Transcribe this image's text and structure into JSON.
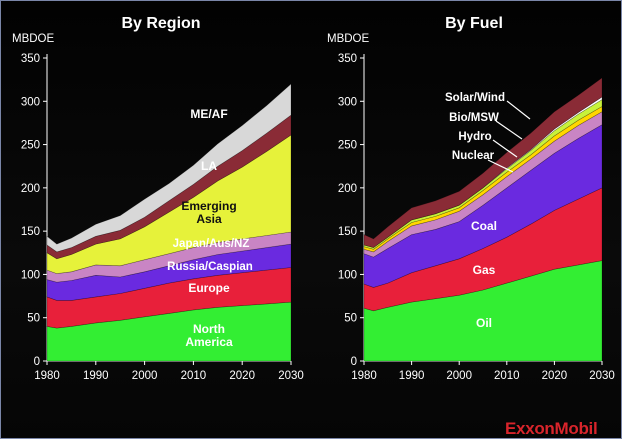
{
  "logo": "ExxonMobil",
  "chart_data": [
    {
      "type": "area",
      "stacked": true,
      "title": "By Region",
      "ylabel": "MBDOE",
      "xlabel": "",
      "ylim": [
        0,
        350
      ],
      "yticks": [
        0,
        50,
        100,
        150,
        200,
        250,
        300,
        350
      ],
      "xticks": [
        1980,
        1990,
        2000,
        2010,
        2020,
        2030
      ],
      "x": [
        1980,
        1982,
        1985,
        1990,
        1995,
        2000,
        2005,
        2010,
        2015,
        2020,
        2025,
        2030
      ],
      "series": [
        {
          "name": "North America",
          "color": "#33ee33",
          "values": [
            40,
            38,
            40,
            44,
            47,
            51,
            55,
            59,
            62,
            64,
            66,
            68
          ]
        },
        {
          "name": "Europe",
          "color": "#e8203a",
          "values": [
            34,
            32,
            30,
            30,
            31,
            33,
            35,
            36,
            37,
            38,
            39,
            40
          ]
        },
        {
          "name": "Russia/Caspian",
          "color": "#6a2ae0",
          "values": [
            20,
            21,
            23,
            25,
            19,
            19,
            20,
            22,
            24,
            25,
            26,
            27
          ]
        },
        {
          "name": "Japan/Aus/NZ",
          "color": "#c985c4",
          "values": [
            11,
            10,
            10,
            12,
            13,
            14,
            14,
            14,
            14,
            14,
            14,
            14
          ]
        },
        {
          "name": "Emerging Asia",
          "color": "#e6f23a",
          "values": [
            20,
            17,
            20,
            24,
            31,
            38,
            48,
            58,
            71,
            83,
            97,
            112
          ]
        },
        {
          "name": "LA",
          "color": "#8a2b36",
          "values": [
            9,
            8,
            8,
            9,
            10,
            11,
            13,
            15,
            17,
            19,
            21,
            23
          ]
        },
        {
          "name": "ME/AF",
          "color": "#d8d8d8",
          "values": [
            10,
            9,
            11,
            14,
            17,
            21,
            20,
            22,
            26,
            29,
            32,
            36
          ]
        }
      ]
    },
    {
      "type": "area",
      "stacked": true,
      "title": "By Fuel",
      "ylabel": "MBDOE",
      "xlabel": "",
      "ylim": [
        0,
        350
      ],
      "yticks": [
        0,
        50,
        100,
        150,
        200,
        250,
        300,
        350
      ],
      "xticks": [
        1980,
        1990,
        2000,
        2010,
        2020,
        2030
      ],
      "x": [
        1980,
        1982,
        1985,
        1990,
        1995,
        2000,
        2005,
        2010,
        2015,
        2020,
        2025,
        2030
      ],
      "series": [
        {
          "name": "Oil",
          "color": "#33ee33",
          "values": [
            61,
            58,
            62,
            68,
            72,
            76,
            82,
            90,
            98,
            106,
            111,
            116
          ]
        },
        {
          "name": "Gas",
          "color": "#e8203a",
          "values": [
            28,
            27,
            28,
            34,
            38,
            42,
            48,
            53,
            60,
            68,
            76,
            84
          ]
        },
        {
          "name": "Coal",
          "color": "#6a2ae0",
          "values": [
            35,
            35,
            40,
            44,
            42,
            43,
            50,
            57,
            62,
            66,
            70,
            73
          ]
        },
        {
          "name": "Nuclear",
          "color": "#c985c4",
          "values": [
            5,
            6,
            8,
            10,
            11,
            12,
            12,
            13,
            13,
            14,
            15,
            15
          ]
        },
        {
          "name": "Hydro",
          "color": "#ffd700",
          "values": [
            3,
            3,
            3,
            4,
            4,
            4,
            5,
            5,
            5,
            6,
            6,
            6
          ]
        },
        {
          "name": "Bio/MSW",
          "color": "#c8f23a",
          "values": [
            2,
            2,
            2,
            3,
            3,
            3,
            3,
            4,
            5,
            6,
            7,
            8
          ]
        },
        {
          "name": "Solar/Wind",
          "color": "#ffffff",
          "values": [
            0,
            0,
            0,
            0,
            0,
            0,
            0,
            1,
            1,
            2,
            2,
            3
          ]
        },
        {
          "name": "",
          "color": "#8a2b36",
          "values": [
            12,
            10,
            12,
            14,
            15,
            16,
            17,
            18,
            19,
            20,
            20,
            22
          ]
        }
      ]
    }
  ],
  "labels_left": [
    "ME/AF",
    "LA",
    "Emerging",
    "Asia",
    "Japan/Aus/NZ",
    "Russia/Caspian",
    "Europe",
    "North",
    "America"
  ],
  "labels_right": [
    "Solar/Wind",
    "Bio/MSW",
    "Hydro",
    "Nuclear",
    "Coal",
    "Gas",
    "Oil"
  ]
}
